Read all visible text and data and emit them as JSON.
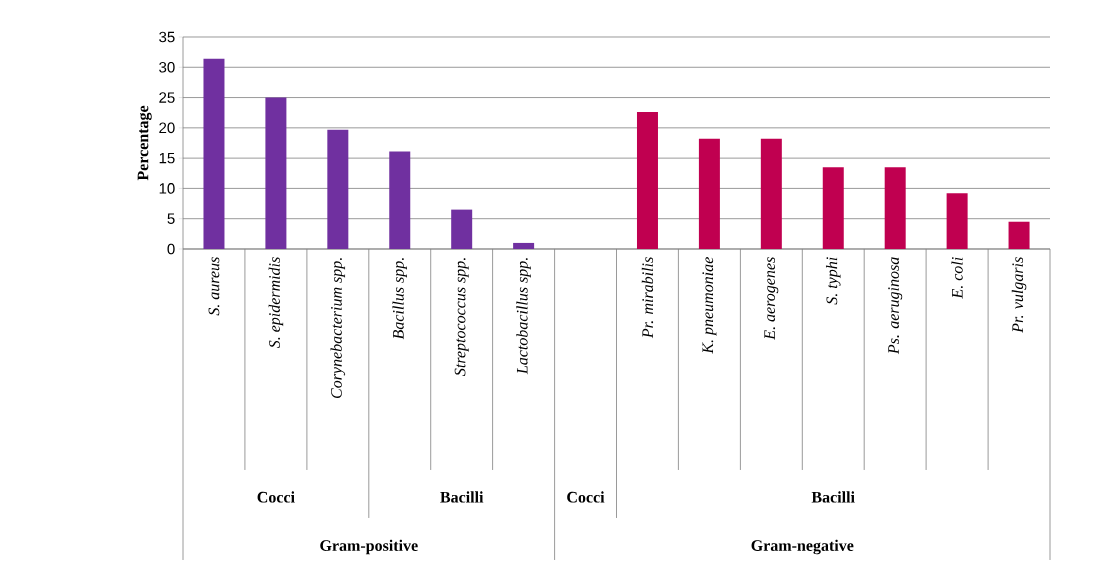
{
  "chart_data": {
    "type": "bar",
    "ylabel": "Percentage",
    "categories": [
      "S. aureus",
      "S. epidermidis",
      "Corynebacterium spp.",
      "Bacillus spp.",
      "Streptococcus spp.",
      "Lactobacillus spp.",
      null,
      "Pr. mirabilis",
      "K. pneumoniae",
      "E. aerogenes",
      "S. typhi",
      "Ps. aeruginosa",
      "E. coli",
      "Pr. vulgaris"
    ],
    "values": [
      31.4,
      25.0,
      19.7,
      16.1,
      6.5,
      1.0,
      null,
      22.6,
      18.2,
      18.2,
      13.5,
      13.5,
      9.2,
      4.5
    ],
    "colors": [
      "#7030a0",
      "#7030a0",
      "#7030a0",
      "#7030a0",
      "#7030a0",
      "#7030a0",
      "#c00050",
      "#c00050",
      "#c00050",
      "#c00050",
      "#c00050",
      "#c00050",
      "#c00050",
      "#c00050"
    ],
    "ylim": [
      0,
      35
    ],
    "yticks": [
      0,
      5,
      10,
      15,
      20,
      25,
      30,
      35
    ],
    "grid": "y",
    "annotations": [
      "Cocci",
      "Bacilli",
      "Cocci",
      "Bacilli",
      "Gram-positive",
      "Gram-negative"
    ]
  }
}
